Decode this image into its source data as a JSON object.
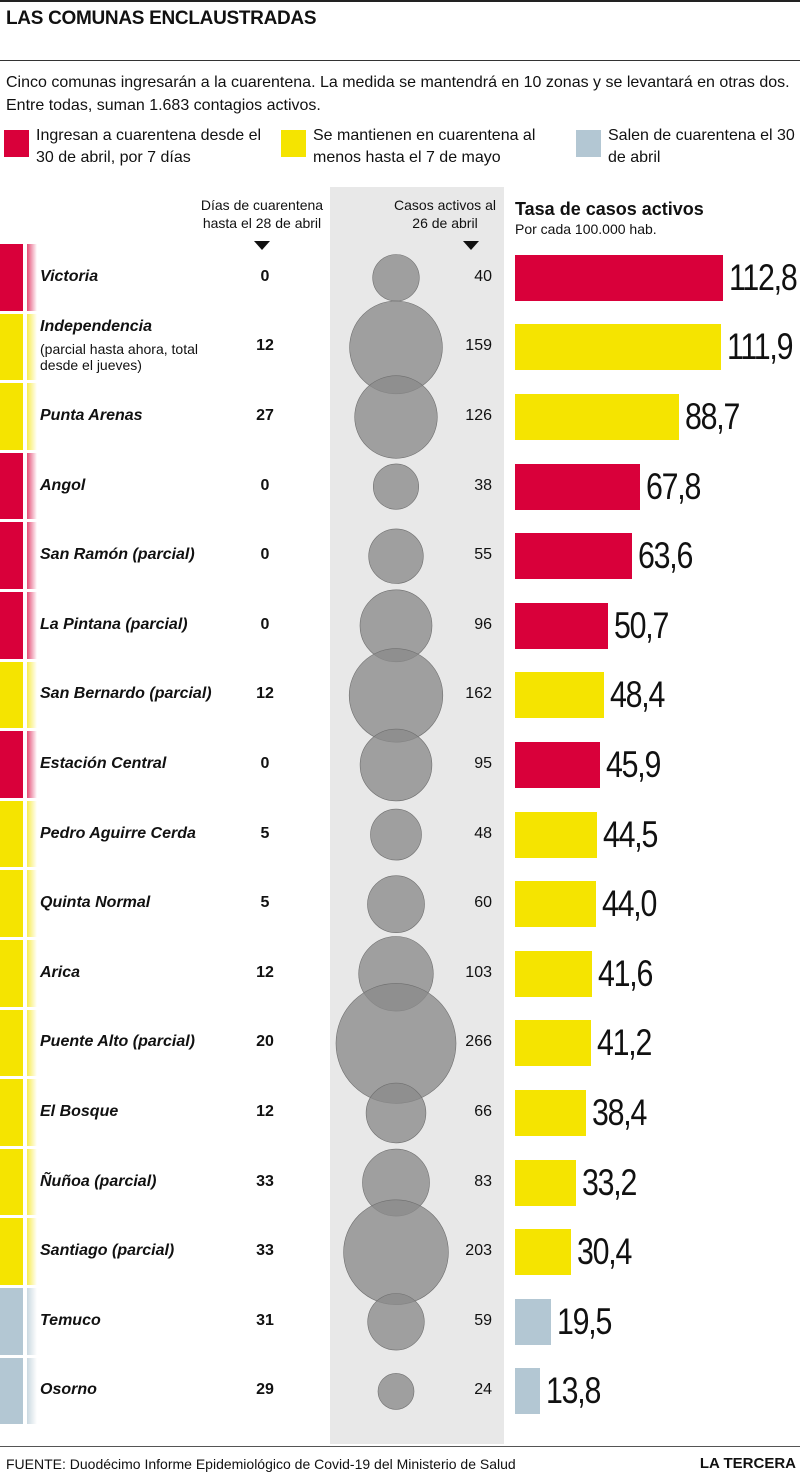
{
  "title": "LAS COMUNAS ENCLAUSTRADAS",
  "intro": "Cinco comunas ingresarán a la cuarentena. La medida se mantendrá en 10 zonas y se levantará en otras dos. Entre todas, suman 1.683 contagios activos.",
  "legend": [
    {
      "label": "Ingresan a cuarentena desde el 30 de abril, por 7 días",
      "color": "#d9003a"
    },
    {
      "label": "Se mantienen en cuarentena al menos hasta el 7 de mayo",
      "color": "#f5e400"
    },
    {
      "label": "Salen de cuarentena el 30 de abril",
      "color": "#b3c7d3"
    }
  ],
  "headers": {
    "days": "Días de cuarentena hasta el 28 de abril",
    "cases": "Casos activos al 26 de abril",
    "rate_title": "Tasa de casos activos",
    "rate_sub": "Por cada 100.000 hab."
  },
  "colors": {
    "red": "#d9003a",
    "yellow": "#f5e400",
    "blue": "#b3c7d3",
    "bubble": "#8a8a8a",
    "band": "#e8e8e8"
  },
  "chart_data": {
    "type": "table",
    "rows": [
      {
        "name": "Victoria",
        "status": "red",
        "days": "0",
        "cases": 40,
        "rate": 112.8,
        "rate_label": "112,8"
      },
      {
        "name": "Independencia",
        "note": "(parcial hasta ahora, total desde el jueves)",
        "status": "yellow",
        "days": "12",
        "cases": 159,
        "rate": 111.9,
        "rate_label": "111,9"
      },
      {
        "name": "Punta Arenas",
        "status": "yellow",
        "days": "27",
        "cases": 126,
        "rate": 88.7,
        "rate_label": "88,7"
      },
      {
        "name": "Angol",
        "status": "red",
        "days": "0",
        "cases": 38,
        "rate": 67.8,
        "rate_label": "67,8"
      },
      {
        "name": "San Ramón (parcial)",
        "status": "red",
        "days": "0",
        "cases": 55,
        "rate": 63.6,
        "rate_label": "63,6"
      },
      {
        "name": "La Pintana (parcial)",
        "status": "red",
        "days": "0",
        "cases": 96,
        "rate": 50.7,
        "rate_label": "50,7"
      },
      {
        "name": "San Bernardo (parcial)",
        "status": "yellow",
        "days": "12",
        "cases": 162,
        "rate": 48.4,
        "rate_label": "48,4"
      },
      {
        "name": "Estación Central",
        "status": "red",
        "days": "0",
        "cases": 95,
        "rate": 45.9,
        "rate_label": "45,9"
      },
      {
        "name": "Pedro Aguirre Cerda",
        "status": "yellow",
        "days": "5",
        "cases": 48,
        "rate": 44.5,
        "rate_label": "44,5"
      },
      {
        "name": "Quinta Normal",
        "status": "yellow",
        "days": "5",
        "cases": 60,
        "rate": 44.0,
        "rate_label": "44,0"
      },
      {
        "name": "Arica",
        "status": "yellow",
        "days": "12",
        "cases": 103,
        "rate": 41.6,
        "rate_label": "41,6"
      },
      {
        "name": "Puente Alto (parcial)",
        "status": "yellow",
        "days": "20",
        "cases": 266,
        "rate": 41.2,
        "rate_label": "41,2"
      },
      {
        "name": "El Bosque",
        "status": "yellow",
        "days": "12",
        "cases": 66,
        "rate": 38.4,
        "rate_label": "38,4"
      },
      {
        "name": "Ñuñoa (parcial)",
        "status": "yellow",
        "days": "33",
        "cases": 83,
        "rate": 33.2,
        "rate_label": "33,2"
      },
      {
        "name": "Santiago (parcial)",
        "status": "yellow",
        "days": "33",
        "cases": 203,
        "rate": 30.4,
        "rate_label": "30,4"
      },
      {
        "name": "Temuco",
        "status": "blue",
        "days": "31",
        "cases": 59,
        "rate": 19.5,
        "rate_label": "19,5"
      },
      {
        "name": "Osorno",
        "status": "blue",
        "days": "29",
        "cases": 24,
        "rate": 13.8,
        "rate_label": "13,8"
      }
    ]
  },
  "footer": {
    "source": "FUENTE: Duodécimo Informe Epidemiológico de Covid-19 del Ministerio de Salud",
    "brand": "LA TERCERA"
  }
}
